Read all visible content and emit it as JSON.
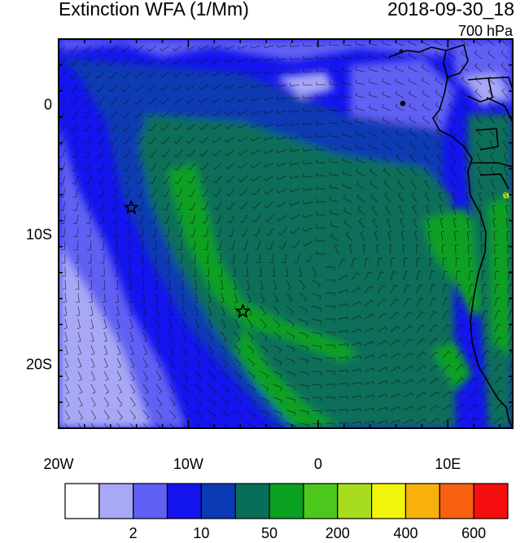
{
  "header": {
    "title": "Extinction WFA (1/Mm)",
    "datetime": "2018-09-30_18",
    "level": "700 hPa"
  },
  "map": {
    "lon_range": [
      -20,
      15
    ],
    "lat_range": [
      -25,
      5
    ],
    "x_ticks": [
      {
        "lon": -20,
        "label": "20W"
      },
      {
        "lon": -10,
        "label": "10W"
      },
      {
        "lon": 0,
        "label": "0"
      },
      {
        "lon": 10,
        "label": "10E"
      }
    ],
    "y_ticks": [
      {
        "lat": 0,
        "label": "0"
      },
      {
        "lat": -10,
        "label": "10S"
      },
      {
        "lat": -20,
        "label": "20S"
      }
    ],
    "markers": [
      {
        "type": "star",
        "lon": -14.4,
        "lat": -8.0
      },
      {
        "type": "star",
        "lon": -5.8,
        "lat": -16.0
      }
    ]
  },
  "colorbar": {
    "colors": [
      "#ffffff",
      "#a8a8f6",
      "#6060f4",
      "#1414ee",
      "#0a3ab4",
      "#086e5a",
      "#0aa020",
      "#4cc81c",
      "#a8dc1e",
      "#f2f60a",
      "#f8b00a",
      "#f86010",
      "#f60e0e"
    ],
    "labels": [
      {
        "after_index": 1,
        "text": "2"
      },
      {
        "after_index": 3,
        "text": "10"
      },
      {
        "after_index": 5,
        "text": "50"
      },
      {
        "after_index": 7,
        "text": "200"
      },
      {
        "after_index": 9,
        "text": "400"
      },
      {
        "after_index": 11,
        "text": "600"
      }
    ]
  }
}
